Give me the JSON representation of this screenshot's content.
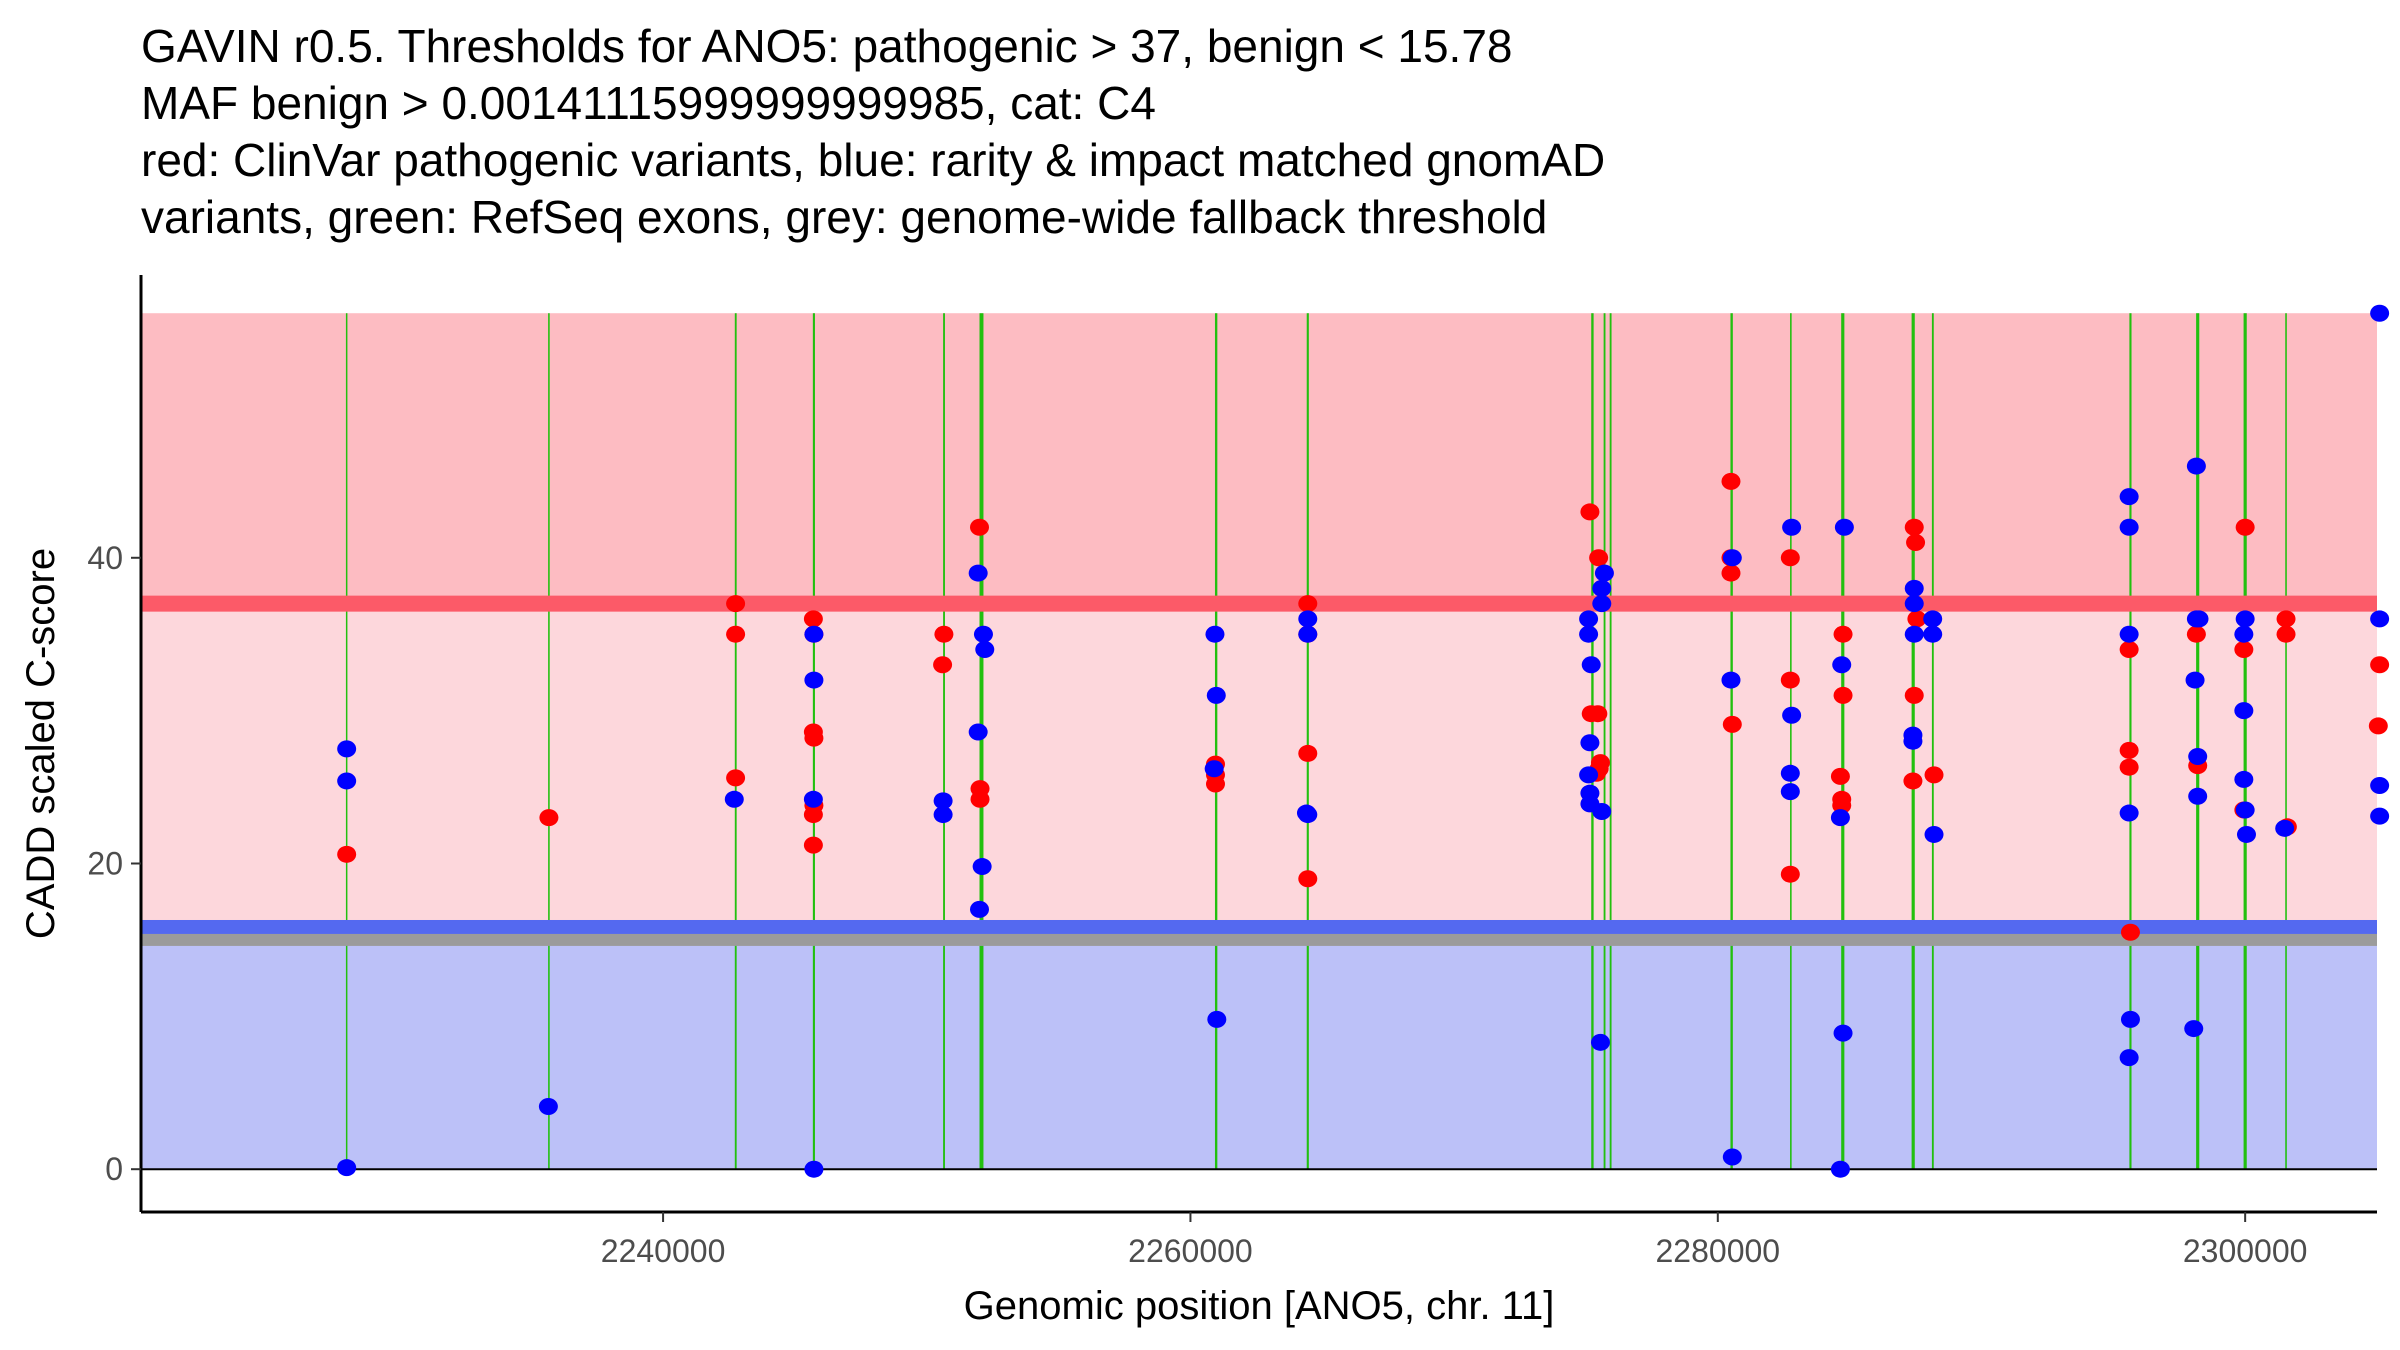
{
  "chart_data": {
    "type": "scatter",
    "title_lines": [
      "GAVIN r0.5. Thresholds for ANO5: pathogenic > 37, benign < 15.78",
      "MAF benign > 0.00141115999999999985, cat: C4",
      "red: ClinVar pathogenic variants, blue: rarity & impact matched gnomAD",
      "variants, green: RefSeq exons, grey: genome-wide fallback threshold"
    ],
    "xlabel": "Genomic position [ANO5, chr. 11]",
    "ylabel": "CADD scaled C-score",
    "xlim": [
      2220200,
      2305000
    ],
    "ylim": [
      -2.8,
      58.5
    ],
    "x_ticks": [
      2240000,
      2260000,
      2280000,
      2300000
    ],
    "x_tick_labels": [
      "2240000",
      "2260000",
      "2280000",
      "2300000"
    ],
    "y_ticks": [
      0,
      20,
      40
    ],
    "y_tick_labels": [
      "0",
      "20",
      "40"
    ],
    "grid": false,
    "thresholds": {
      "pathogenic": 37,
      "benign": 15.78,
      "genome_wide_fallback": 15,
      "max_score": 56
    },
    "regions": [
      {
        "name": "pathogenic-region",
        "from": 37,
        "to": 56,
        "color": "#fdbcc2"
      },
      {
        "name": "vus-region",
        "from": 15.78,
        "to": 37,
        "color": "#fdd7dc"
      },
      {
        "name": "benign-region",
        "from": 0,
        "to": 15.78,
        "color": "#bcc1f8"
      }
    ],
    "threshold_lines": [
      {
        "name": "pathogenic-threshold",
        "value": 37,
        "color": "#fc5a68"
      },
      {
        "name": "benign-threshold",
        "value": 15.78,
        "color": "#5469f0"
      },
      {
        "name": "fallback-threshold",
        "value": 15,
        "color": "#9b9b9b"
      }
    ],
    "exons": [
      {
        "start": 2227980,
        "end": 2228020
      },
      {
        "start": 2235640,
        "end": 2235700
      },
      {
        "start": 2242720,
        "end": 2242790
      },
      {
        "start": 2245680,
        "end": 2245760
      },
      {
        "start": 2250620,
        "end": 2250690
      },
      {
        "start": 2252000,
        "end": 2252150
      },
      {
        "start": 2260930,
        "end": 2261020
      },
      {
        "start": 2264410,
        "end": 2264490
      },
      {
        "start": 2275200,
        "end": 2275290
      },
      {
        "start": 2275670,
        "end": 2275740
      },
      {
        "start": 2275900,
        "end": 2275970
      },
      {
        "start": 2280480,
        "end": 2280570
      },
      {
        "start": 2282740,
        "end": 2282800
      },
      {
        "start": 2284680,
        "end": 2284800
      },
      {
        "start": 2287350,
        "end": 2287470
      },
      {
        "start": 2288120,
        "end": 2288190
      },
      {
        "start": 2295610,
        "end": 2295690
      },
      {
        "start": 2298140,
        "end": 2298260
      },
      {
        "start": 2299940,
        "end": 2300060
      },
      {
        "start": 2301520,
        "end": 2301580
      }
    ],
    "series": [
      {
        "name": "ClinVar pathogenic variants",
        "color": "#ff0000",
        "points": [
          [
            2228000,
            20.6
          ],
          [
            2235670,
            23.0
          ],
          [
            2242750,
            37.0
          ],
          [
            2242750,
            35.0
          ],
          [
            2242750,
            25.6
          ],
          [
            2245700,
            36.0
          ],
          [
            2245720,
            35.0
          ],
          [
            2245700,
            28.6
          ],
          [
            2245720,
            28.2
          ],
          [
            2245720,
            23.8
          ],
          [
            2245700,
            23.2
          ],
          [
            2245700,
            21.2
          ],
          [
            2250650,
            35.0
          ],
          [
            2250600,
            33.0
          ],
          [
            2252000,
            42.0
          ],
          [
            2252020,
            24.9
          ],
          [
            2252020,
            24.2
          ],
          [
            2260950,
            26.5
          ],
          [
            2260950,
            25.8
          ],
          [
            2260950,
            25.2
          ],
          [
            2264450,
            37.0
          ],
          [
            2264450,
            35.0
          ],
          [
            2264450,
            27.2
          ],
          [
            2264450,
            19.0
          ],
          [
            2275150,
            43.0
          ],
          [
            2275200,
            29.8
          ],
          [
            2275400,
            25.9
          ],
          [
            2275450,
            29.8
          ],
          [
            2275500,
            26.2
          ],
          [
            2275550,
            26.6
          ],
          [
            2275480,
            40.0
          ],
          [
            2280500,
            45.0
          ],
          [
            2280500,
            40.0
          ],
          [
            2280500,
            39.0
          ],
          [
            2280550,
            29.1
          ],
          [
            2282750,
            40.0
          ],
          [
            2282750,
            19.3
          ],
          [
            2282750,
            32.0
          ],
          [
            2284650,
            25.7
          ],
          [
            2284700,
            24.2
          ],
          [
            2284700,
            23.8
          ],
          [
            2284750,
            35.0
          ],
          [
            2284750,
            31.0
          ],
          [
            2287450,
            42.0
          ],
          [
            2287500,
            41.0
          ],
          [
            2287550,
            36.0
          ],
          [
            2287450,
            31.0
          ],
          [
            2287400,
            25.4
          ],
          [
            2288200,
            25.8
          ],
          [
            2295600,
            34.0
          ],
          [
            2295600,
            27.4
          ],
          [
            2295600,
            26.3
          ],
          [
            2295650,
            15.5
          ],
          [
            2298150,
            35.0
          ],
          [
            2298200,
            26.4
          ],
          [
            2300000,
            42.0
          ],
          [
            2299950,
            34.0
          ],
          [
            2299950,
            23.5
          ],
          [
            2301550,
            36.0
          ],
          [
            2301550,
            35.0
          ],
          [
            2301600,
            22.4
          ],
          [
            2305100,
            33.0
          ],
          [
            2305050,
            29.0
          ]
        ]
      },
      {
        "name": "rarity & impact matched gnomAD variants",
        "color": "#0000ff",
        "points": [
          [
            2228000,
            27.5
          ],
          [
            2228000,
            25.4
          ],
          [
            2228000,
            0.1
          ],
          [
            2235650,
            4.1
          ],
          [
            2242700,
            24.2
          ],
          [
            2245720,
            35.0
          ],
          [
            2245720,
            32.0
          ],
          [
            2245700,
            24.2
          ],
          [
            2245720,
            0.0
          ],
          [
            2250620,
            24.1
          ],
          [
            2250620,
            23.2
          ],
          [
            2251950,
            39.0
          ],
          [
            2251950,
            28.6
          ],
          [
            2252150,
            35.0
          ],
          [
            2252200,
            34.0
          ],
          [
            2252100,
            19.8
          ],
          [
            2252000,
            17.0
          ],
          [
            2260930,
            35.0
          ],
          [
            2260980,
            31.0
          ],
          [
            2260900,
            26.2
          ],
          [
            2261000,
            9.8
          ],
          [
            2264450,
            36.0
          ],
          [
            2264450,
            35.0
          ],
          [
            2264400,
            23.3
          ],
          [
            2264450,
            23.2
          ],
          [
            2275100,
            36.0
          ],
          [
            2275100,
            35.0
          ],
          [
            2275200,
            33.0
          ],
          [
            2275150,
            27.9
          ],
          [
            2275100,
            25.8
          ],
          [
            2275150,
            24.6
          ],
          [
            2275150,
            23.9
          ],
          [
            2275700,
            39.0
          ],
          [
            2275600,
            38.0
          ],
          [
            2275600,
            37.0
          ],
          [
            2275600,
            23.4
          ],
          [
            2275550,
            8.3
          ],
          [
            2280550,
            40.0
          ],
          [
            2280500,
            32.0
          ],
          [
            2280550,
            0.8
          ],
          [
            2282800,
            42.0
          ],
          [
            2282800,
            29.7
          ],
          [
            2282750,
            25.9
          ],
          [
            2282750,
            24.7
          ],
          [
            2284800,
            42.0
          ],
          [
            2284700,
            33.0
          ],
          [
            2284650,
            23.0
          ],
          [
            2284750,
            8.9
          ],
          [
            2284650,
            0.0
          ],
          [
            2287450,
            38.0
          ],
          [
            2287450,
            37.0
          ],
          [
            2287450,
            35.0
          ],
          [
            2287400,
            28.0
          ],
          [
            2287400,
            28.4
          ],
          [
            2288150,
            36.0
          ],
          [
            2288150,
            35.0
          ],
          [
            2288200,
            21.9
          ],
          [
            2295600,
            44.0
          ],
          [
            2295600,
            42.0
          ],
          [
            2295600,
            35.0
          ],
          [
            2295600,
            23.3
          ],
          [
            2295650,
            9.8
          ],
          [
            2295600,
            7.3
          ],
          [
            2298150,
            46.0
          ],
          [
            2298150,
            36.0
          ],
          [
            2298250,
            36.0
          ],
          [
            2298100,
            32.0
          ],
          [
            2298200,
            27.0
          ],
          [
            2298200,
            24.4
          ],
          [
            2298050,
            9.2
          ],
          [
            2300000,
            36.0
          ],
          [
            2299950,
            35.0
          ],
          [
            2299950,
            30.0
          ],
          [
            2299950,
            25.5
          ],
          [
            2300000,
            23.5
          ],
          [
            2300050,
            21.9
          ],
          [
            2301500,
            22.3
          ],
          [
            2305100,
            56.0
          ],
          [
            2305100,
            36.0
          ],
          [
            2305100,
            25.1
          ],
          [
            2305100,
            23.1
          ]
        ]
      }
    ]
  }
}
